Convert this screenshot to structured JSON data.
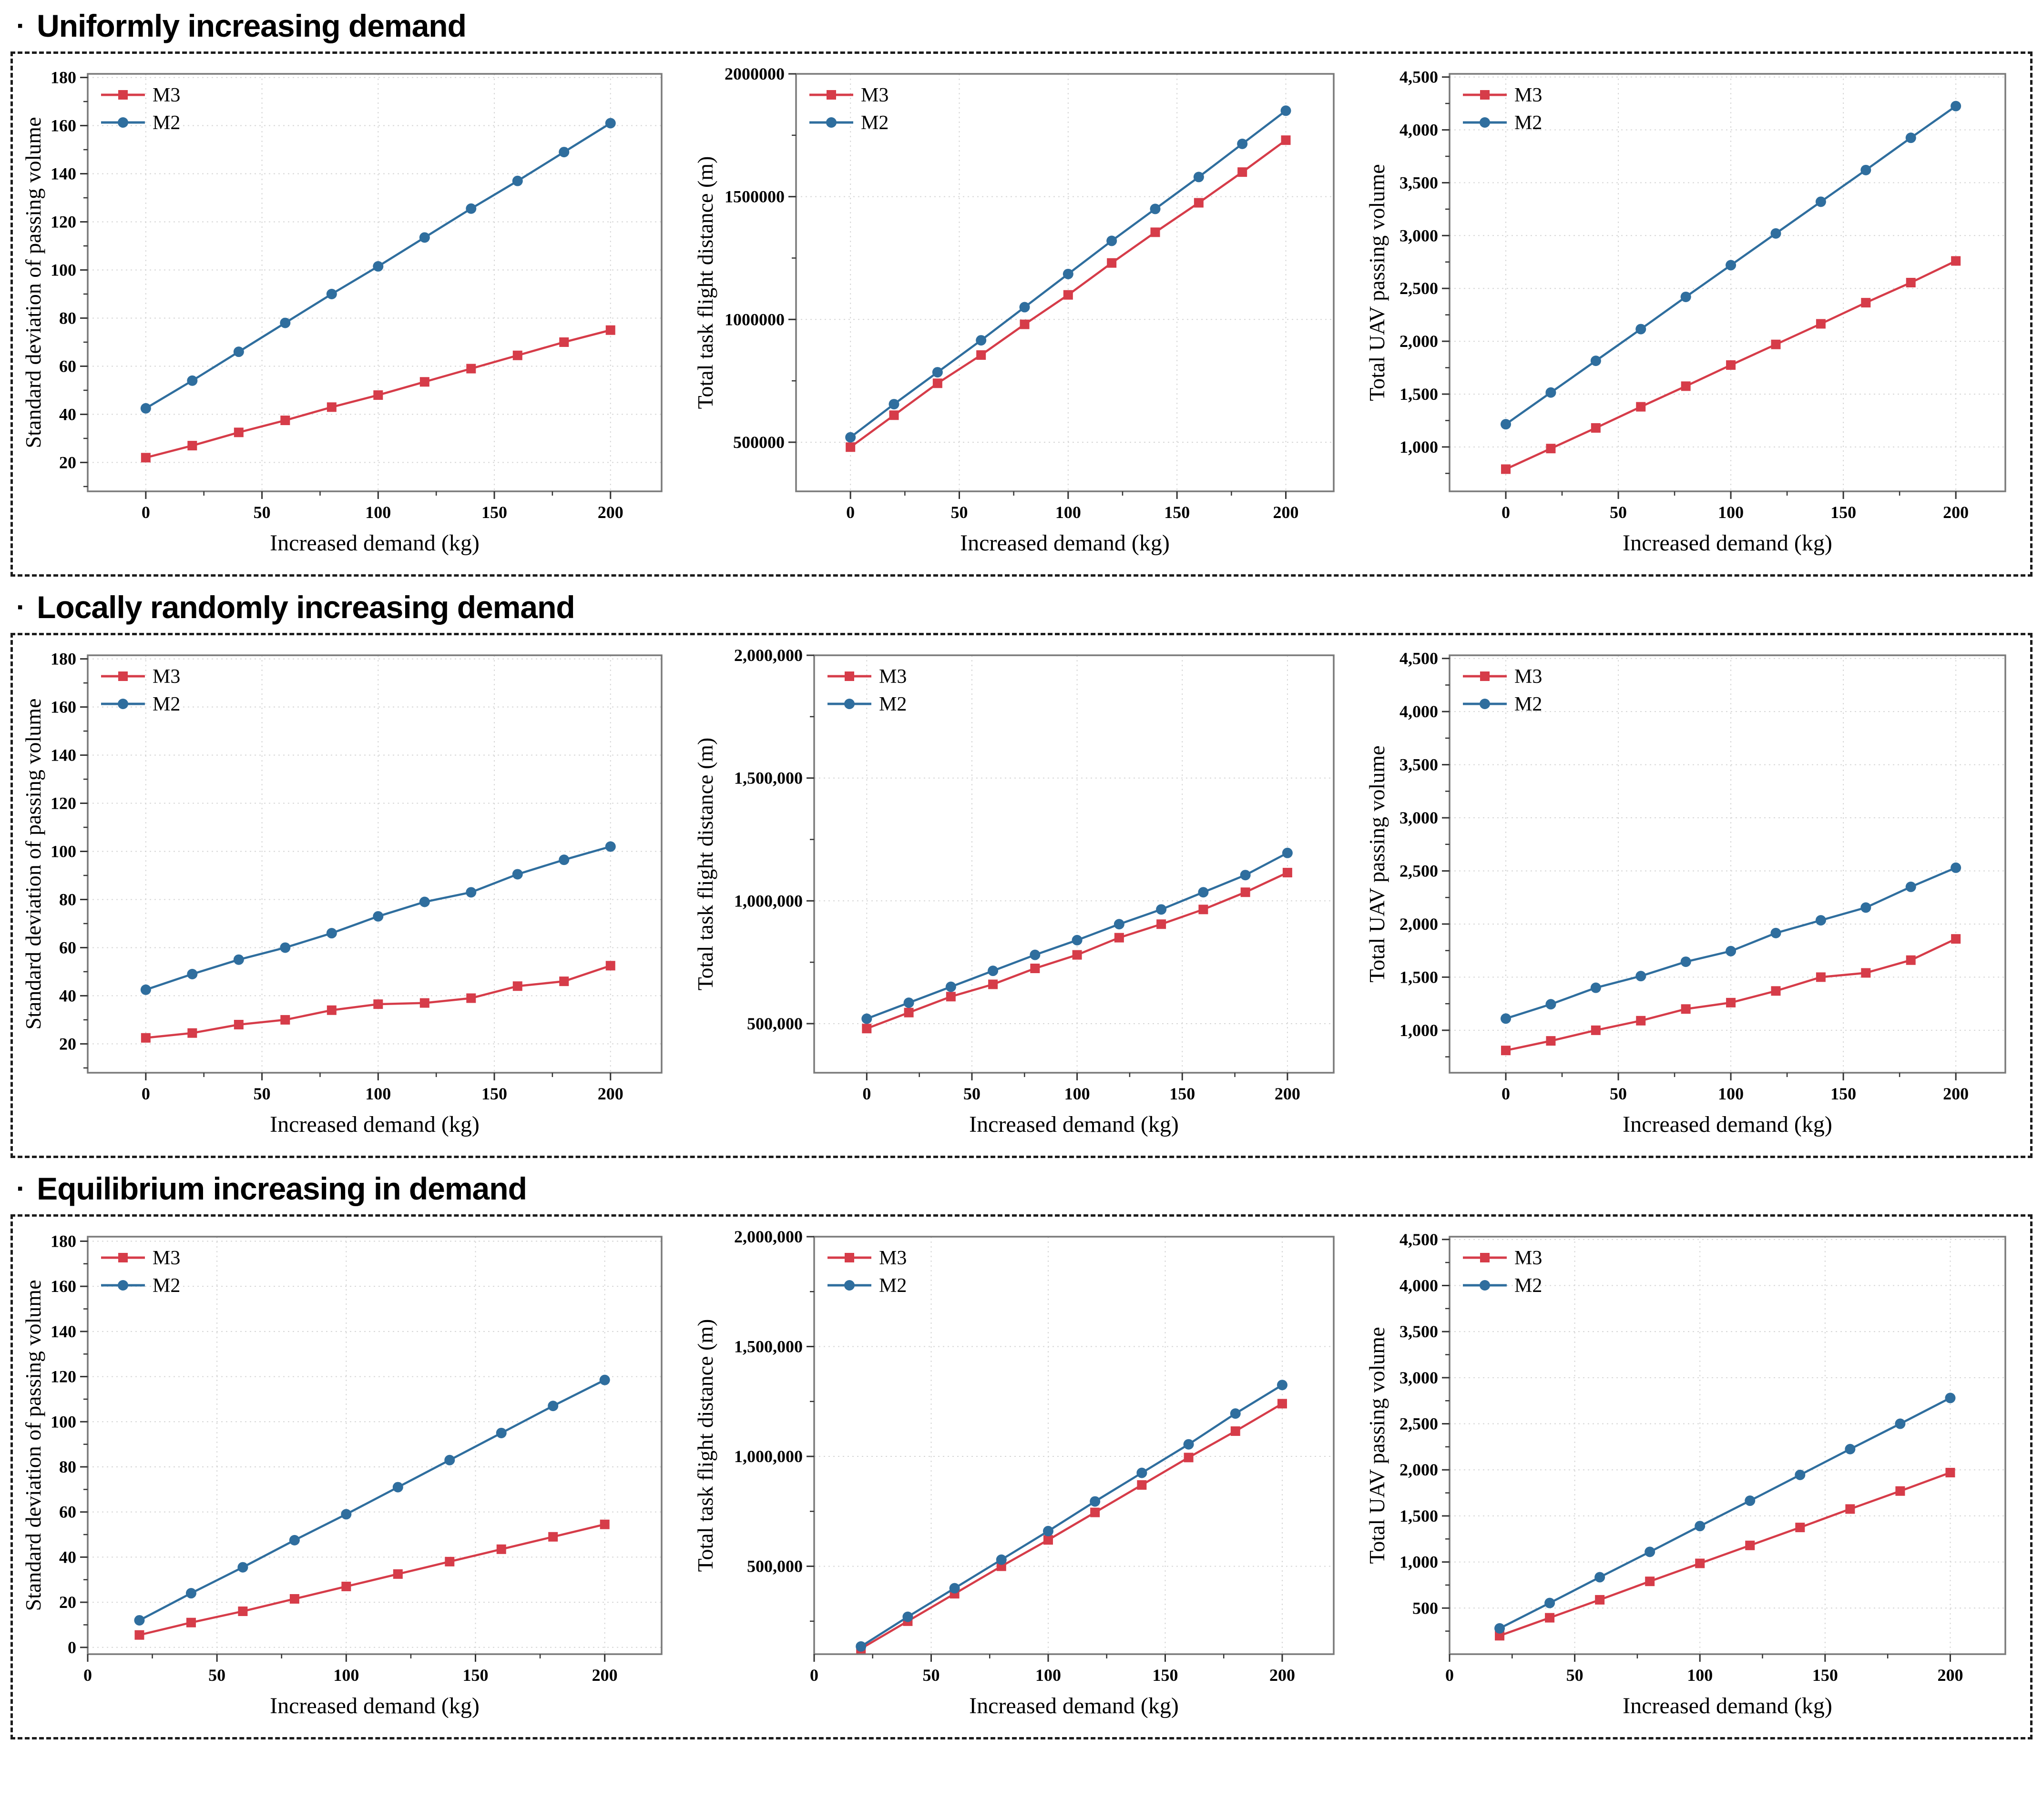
{
  "sections": [
    {
      "bullet": "▪",
      "title": "Uniformly increasing demand",
      "chart_indexes": [
        0,
        1,
        2
      ]
    },
    {
      "bullet": "▪",
      "title": "Locally randomly increasing demand",
      "chart_indexes": [
        3,
        4,
        5
      ]
    },
    {
      "bullet": "▪",
      "title": "Equilibrium increasing in demand",
      "chart_indexes": [
        6,
        7,
        8
      ]
    }
  ],
  "colors": {
    "m3": "#d63c49",
    "m2": "#2f6e9e",
    "grid": "#d6d6d6",
    "frame": "#7a7a7a",
    "tick": "#333333",
    "text": "#000000"
  },
  "chart_data": [
    {
      "type": "line",
      "title": "",
      "xlabel": "Increased demand (kg)",
      "ylabel": "Standard deviation of passing volume",
      "x": [
        0,
        20,
        40,
        60,
        80,
        100,
        120,
        140,
        160,
        180,
        200
      ],
      "xlim": [
        -25,
        222
      ],
      "ylim": [
        8,
        181.5
      ],
      "xticks": [
        0,
        50,
        100,
        150,
        200
      ],
      "xtick_labels": [
        "0",
        "50",
        "100",
        "150",
        "200"
      ],
      "yticks": [
        20,
        40,
        60,
        80,
        100,
        120,
        140,
        160,
        180
      ],
      "ytick_labels": [
        "20",
        "40",
        "60",
        "80",
        "100",
        "120",
        "140",
        "160",
        "180"
      ],
      "grid": true,
      "legend_position": "top-left",
      "series": [
        {
          "name": "M3",
          "color": "#d63c49",
          "marker": "square",
          "values": [
            22,
            27,
            32.5,
            37.5,
            43,
            48,
            53.5,
            59,
            64.5,
            70,
            75
          ]
        },
        {
          "name": "M2",
          "color": "#2f6e9e",
          "marker": "circle",
          "values": [
            42.5,
            54,
            66,
            78,
            90,
            101.5,
            113.5,
            125.5,
            137,
            149,
            161
          ]
        }
      ]
    },
    {
      "type": "line",
      "title": "",
      "xlabel": "Increased demand (kg)",
      "ylabel": "Total task flight distance (m)",
      "x": [
        0,
        20,
        40,
        60,
        80,
        100,
        120,
        140,
        160,
        180,
        200
      ],
      "xlim": [
        -25,
        222
      ],
      "ylim": [
        300000,
        2000000
      ],
      "xticks": [
        0,
        50,
        100,
        150,
        200
      ],
      "xtick_labels": [
        "0",
        "50",
        "100",
        "150",
        "200"
      ],
      "yticks": [
        500000,
        1000000,
        1500000,
        2000000
      ],
      "ytick_labels": [
        "500000",
        "1000000",
        "1500000",
        "2000000"
      ],
      "grid": true,
      "legend_position": "top-left",
      "series": [
        {
          "name": "M3",
          "color": "#d63c49",
          "marker": "square",
          "values": [
            480000,
            610000,
            740000,
            855000,
            980000,
            1100000,
            1230000,
            1355000,
            1475000,
            1600000,
            1730000
          ]
        },
        {
          "name": "M2",
          "color": "#2f6e9e",
          "marker": "circle",
          "values": [
            520000,
            655000,
            785000,
            915000,
            1050000,
            1185000,
            1320000,
            1450000,
            1580000,
            1715000,
            1850000
          ]
        }
      ]
    },
    {
      "type": "line",
      "title": "",
      "xlabel": "Increased demand (kg)",
      "ylabel": "Total UAV passing volume",
      "x": [
        0,
        20,
        40,
        60,
        80,
        100,
        120,
        140,
        160,
        180,
        200
      ],
      "xlim": [
        -25,
        222
      ],
      "ylim": [
        580,
        4530
      ],
      "xticks": [
        0,
        50,
        100,
        150,
        200
      ],
      "xtick_labels": [
        "0",
        "50",
        "100",
        "150",
        "200"
      ],
      "yticks": [
        1000,
        1500,
        2000,
        2500,
        3000,
        3500,
        4000,
        4500
      ],
      "ytick_labels": [
        "1,000",
        "1,500",
        "2,000",
        "2,500",
        "3,000",
        "3,500",
        "4,000",
        "4,500"
      ],
      "grid": true,
      "legend_position": "top-left",
      "series": [
        {
          "name": "M3",
          "color": "#d63c49",
          "marker": "square",
          "values": [
            790,
            985,
            1180,
            1380,
            1575,
            1775,
            1970,
            2165,
            2365,
            2555,
            2760
          ]
        },
        {
          "name": "M2",
          "color": "#2f6e9e",
          "marker": "circle",
          "values": [
            1215,
            1515,
            1815,
            2115,
            2420,
            2720,
            3020,
            3320,
            3620,
            3925,
            4225
          ]
        }
      ]
    },
    {
      "type": "line",
      "title": "",
      "xlabel": "Increased demand (kg)",
      "ylabel": "Standard deviation of passing volume",
      "x": [
        0,
        20,
        40,
        60,
        80,
        100,
        120,
        140,
        160,
        180,
        200
      ],
      "xlim": [
        -25,
        222
      ],
      "ylim": [
        8,
        181.5
      ],
      "xticks": [
        0,
        50,
        100,
        150,
        200
      ],
      "xtick_labels": [
        "0",
        "50",
        "100",
        "150",
        "200"
      ],
      "yticks": [
        20,
        40,
        60,
        80,
        100,
        120,
        140,
        160,
        180
      ],
      "ytick_labels": [
        "20",
        "40",
        "60",
        "80",
        "100",
        "120",
        "140",
        "160",
        "180"
      ],
      "grid": true,
      "legend_position": "top-left",
      "series": [
        {
          "name": "M3",
          "color": "#d63c49",
          "marker": "square",
          "values": [
            22.5,
            24.5,
            28,
            30,
            34,
            36.5,
            37,
            39,
            44,
            46,
            52.5
          ]
        },
        {
          "name": "M2",
          "color": "#2f6e9e",
          "marker": "circle",
          "values": [
            42.5,
            49,
            55,
            60,
            66,
            73,
            79,
            83,
            90.5,
            96.5,
            102
          ]
        }
      ]
    },
    {
      "type": "line",
      "title": "",
      "xlabel": "Increased demand (kg)",
      "ylabel": "Total task flight distance (m)",
      "x": [
        0,
        20,
        40,
        60,
        80,
        100,
        120,
        140,
        160,
        180,
        200
      ],
      "xlim": [
        -25,
        222
      ],
      "ylim": [
        300000,
        2000000
      ],
      "xticks": [
        0,
        50,
        100,
        150,
        200
      ],
      "xtick_labels": [
        "0",
        "50",
        "100",
        "150",
        "200"
      ],
      "yticks": [
        500000,
        1000000,
        1500000,
        2000000
      ],
      "ytick_labels": [
        "500,000",
        "1,000,000",
        "1,500,000",
        "2,000,000"
      ],
      "grid": true,
      "legend_position": "top-left",
      "series": [
        {
          "name": "M3",
          "color": "#d63c49",
          "marker": "square",
          "values": [
            480000,
            545000,
            610000,
            660000,
            725000,
            780000,
            850000,
            905000,
            965000,
            1035000,
            1115000
          ]
        },
        {
          "name": "M2",
          "color": "#2f6e9e",
          "marker": "circle",
          "values": [
            520000,
            585000,
            650000,
            715000,
            780000,
            840000,
            905000,
            965000,
            1035000,
            1105000,
            1195000
          ]
        }
      ]
    },
    {
      "type": "line",
      "title": "",
      "xlabel": "Increased demand (kg)",
      "ylabel": "Total UAV passing volume",
      "x": [
        0,
        20,
        40,
        60,
        80,
        100,
        120,
        140,
        160,
        180,
        200
      ],
      "xlim": [
        -25,
        222
      ],
      "ylim": [
        600,
        4530
      ],
      "xticks": [
        0,
        50,
        100,
        150,
        200
      ],
      "xtick_labels": [
        "0",
        "50",
        "100",
        "150",
        "200"
      ],
      "yticks": [
        1000,
        1500,
        2000,
        2500,
        3000,
        3500,
        4000,
        4500
      ],
      "ytick_labels": [
        "1,000",
        "1,500",
        "2,000",
        "2,500",
        "3,000",
        "3,500",
        "4,000",
        "4,500"
      ],
      "grid": true,
      "legend_position": "top-left",
      "series": [
        {
          "name": "M3",
          "color": "#d63c49",
          "marker": "square",
          "values": [
            810,
            900,
            1000,
            1090,
            1200,
            1260,
            1370,
            1500,
            1540,
            1660,
            1860
          ]
        },
        {
          "name": "M2",
          "color": "#2f6e9e",
          "marker": "circle",
          "values": [
            1110,
            1245,
            1400,
            1510,
            1645,
            1745,
            1915,
            2035,
            2155,
            2350,
            2530
          ]
        }
      ]
    },
    {
      "type": "line",
      "title": "",
      "xlabel": "Increased demand (kg)",
      "ylabel": "Standard deviation of passing volume",
      "x": [
        20,
        40,
        60,
        80,
        100,
        120,
        140,
        160,
        180,
        200
      ],
      "xlim": [
        0,
        222
      ],
      "ylim": [
        -3,
        182
      ],
      "xticks": [
        0,
        50,
        100,
        150,
        200
      ],
      "xtick_labels": [
        "0",
        "50",
        "100",
        "150",
        "200"
      ],
      "yticks": [
        0,
        20,
        40,
        60,
        80,
        100,
        120,
        140,
        160,
        180
      ],
      "ytick_labels": [
        "0",
        "20",
        "40",
        "60",
        "80",
        "100",
        "120",
        "140",
        "160",
        "180"
      ],
      "grid": true,
      "legend_position": "top-left",
      "series": [
        {
          "name": "M3",
          "color": "#d63c49",
          "marker": "square",
          "values": [
            5.5,
            11,
            16,
            21.5,
            27,
            32.5,
            38,
            43.5,
            49,
            54.5
          ]
        },
        {
          "name": "M2",
          "color": "#2f6e9e",
          "marker": "circle",
          "values": [
            12,
            24,
            35.5,
            47.5,
            59,
            71,
            83,
            95,
            107,
            118.5
          ]
        }
      ]
    },
    {
      "type": "line",
      "title": "",
      "xlabel": "Increased demand (kg)",
      "ylabel": "Total task flight distance (m)",
      "x": [
        20,
        40,
        60,
        80,
        100,
        120,
        140,
        160,
        180,
        200
      ],
      "xlim": [
        0,
        222
      ],
      "ylim": [
        100000,
        2000000
      ],
      "xticks": [
        0,
        50,
        100,
        150,
        200
      ],
      "xtick_labels": [
        "0",
        "50",
        "100",
        "150",
        "200"
      ],
      "yticks": [
        500000,
        1000000,
        1500000,
        2000000
      ],
      "ytick_labels": [
        "500,000",
        "1,000,000",
        "1,500,000",
        "2,000,000"
      ],
      "grid": true,
      "legend_position": "top-left",
      "series": [
        {
          "name": "M3",
          "color": "#d63c49",
          "marker": "square",
          "values": [
            125000,
            250000,
            375000,
            500000,
            620000,
            745000,
            870000,
            995000,
            1115000,
            1240000
          ]
        },
        {
          "name": "M2",
          "color": "#2f6e9e",
          "marker": "circle",
          "values": [
            135000,
            270000,
            400000,
            530000,
            660000,
            795000,
            925000,
            1055000,
            1195000,
            1325000
          ]
        }
      ]
    },
    {
      "type": "line",
      "title": "",
      "xlabel": "Increased demand (kg)",
      "ylabel": "Total UAV passing volume",
      "x": [
        20,
        40,
        60,
        80,
        100,
        120,
        140,
        160,
        180,
        200
      ],
      "xlim": [
        0,
        222
      ],
      "ylim": [
        0,
        4530
      ],
      "xticks": [
        0,
        50,
        100,
        150,
        200
      ],
      "xtick_labels": [
        "0",
        "50",
        "100",
        "150",
        "200"
      ],
      "yticks": [
        500,
        1000,
        1500,
        2000,
        2500,
        3000,
        3500,
        4000,
        4500
      ],
      "ytick_labels": [
        "500",
        "1,000",
        "1,500",
        "2,000",
        "2,500",
        "3,000",
        "3,500",
        "4,000",
        "4,500"
      ],
      "grid": true,
      "legend_position": "top-left",
      "series": [
        {
          "name": "M3",
          "color": "#d63c49",
          "marker": "square",
          "values": [
            200,
            395,
            590,
            790,
            985,
            1180,
            1375,
            1575,
            1770,
            1970
          ]
        },
        {
          "name": "M2",
          "color": "#2f6e9e",
          "marker": "circle",
          "values": [
            280,
            555,
            835,
            1110,
            1390,
            1665,
            1945,
            2225,
            2500,
            2780
          ]
        }
      ]
    }
  ]
}
